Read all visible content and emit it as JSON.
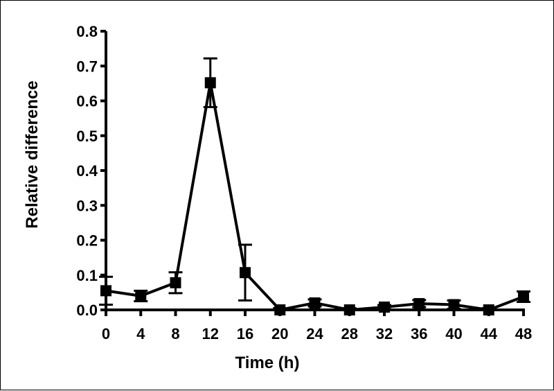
{
  "chart_data": {
    "type": "line",
    "title": "",
    "xlabel": "Time (h)",
    "ylabel": "Relative difference",
    "x": [
      0,
      4,
      8,
      12,
      16,
      20,
      24,
      28,
      32,
      36,
      40,
      44,
      48
    ],
    "series": [
      {
        "values": [
          0.055,
          0.04,
          0.078,
          0.652,
          0.107,
          0.0,
          0.02,
          0.0,
          0.008,
          0.018,
          0.015,
          0.0,
          0.038
        ],
        "error": [
          0.04,
          0.015,
          0.03,
          0.07,
          0.08,
          0.005,
          0.01,
          0.005,
          0.006,
          0.01,
          0.012,
          0.005,
          0.015
        ],
        "marker": "square",
        "color": "#000000"
      }
    ],
    "xticks": [
      0,
      4,
      8,
      12,
      16,
      20,
      24,
      28,
      32,
      36,
      40,
      44,
      48
    ],
    "xtick_labels": [
      "0",
      "4",
      "8",
      "12",
      "16",
      "20",
      "24",
      "28",
      "32",
      "36",
      "40",
      "44",
      "48"
    ],
    "yticks": [
      0.0,
      0.1,
      0.2,
      0.3,
      0.4,
      0.5,
      0.6,
      0.7,
      0.8
    ],
    "ytick_labels": [
      "0.0",
      "0.1",
      "0.2",
      "0.3",
      "0.4",
      "0.5",
      "0.6",
      "0.7",
      "0.8"
    ],
    "xlim": [
      0,
      48
    ],
    "ylim": [
      0,
      0.8
    ],
    "grid": false,
    "legend": "none"
  }
}
